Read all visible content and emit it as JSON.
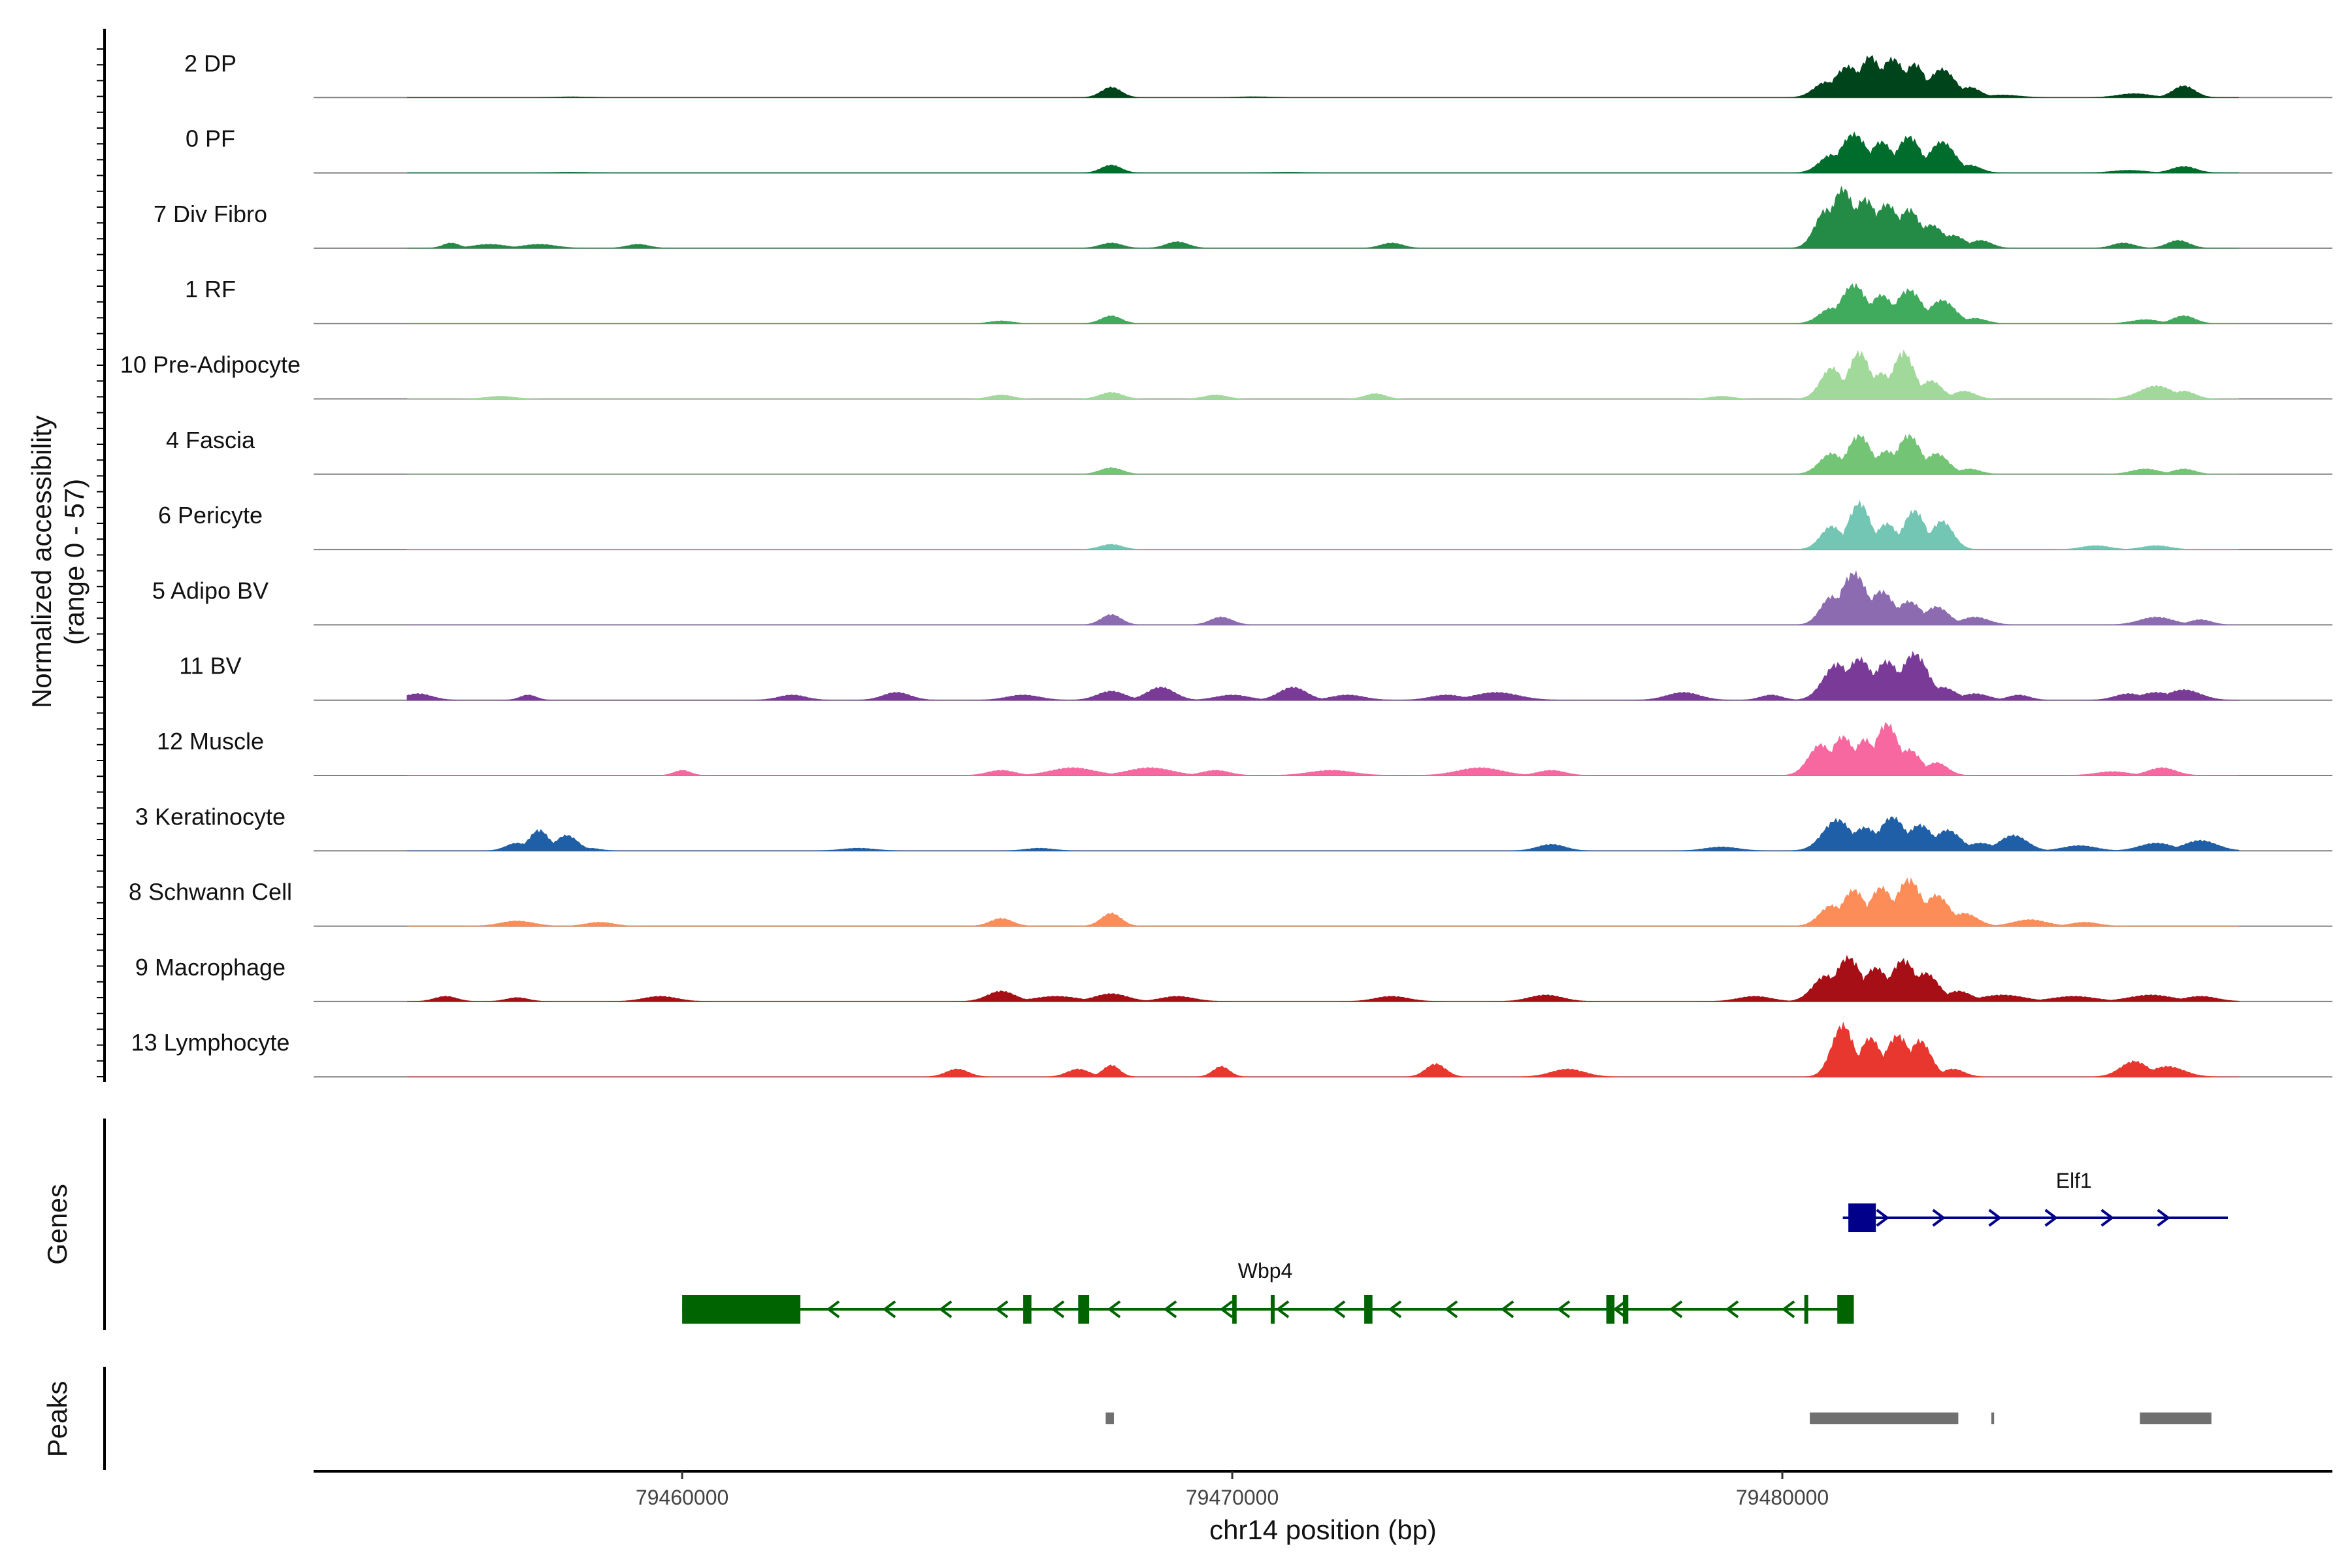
{
  "chart_data": {
    "type": "genome-track",
    "y_axis_title": [
      "Normalized accessibility",
      "(range 0 - 57)"
    ],
    "y_range": [
      0,
      57
    ],
    "x_axis_title": "chr14 position (bp)",
    "x_range": [
      79453300,
      79490000
    ],
    "x_ticks": [
      {
        "value": 79460000,
        "label": "79460000"
      },
      {
        "value": 79470000,
        "label": "79470000"
      },
      {
        "value": 79480000,
        "label": "79480000"
      }
    ],
    "tracks": [
      {
        "name": "2 DP",
        "color": "#00441b",
        "peaks": [
          [
            79458000,
            0.5,
            300
          ],
          [
            79467800,
            8,
            180
          ],
          [
            79470400,
            0.6,
            300
          ],
          [
            79480800,
            12,
            220
          ],
          [
            79481200,
            24,
            260
          ],
          [
            79481600,
            32,
            200
          ],
          [
            79482000,
            30,
            240
          ],
          [
            79482400,
            26,
            200
          ],
          [
            79482900,
            22,
            240
          ],
          [
            79483400,
            8,
            200
          ],
          [
            79484000,
            2,
            300
          ],
          [
            79486400,
            3,
            300
          ],
          [
            79487300,
            9,
            200
          ]
        ]
      },
      {
        "name": "0 PF",
        "color": "#006d2c",
        "peaks": [
          [
            79458000,
            0.5,
            300
          ],
          [
            79467800,
            6,
            180
          ],
          [
            79471000,
            0.5,
            300
          ],
          [
            79480900,
            14,
            220
          ],
          [
            79481300,
            30,
            250
          ],
          [
            79481800,
            24,
            220
          ],
          [
            79482300,
            28,
            220
          ],
          [
            79482900,
            24,
            240
          ],
          [
            79483400,
            6,
            200
          ],
          [
            79486300,
            2,
            300
          ],
          [
            79487300,
            5,
            220
          ]
        ]
      },
      {
        "name": "7 Div Fibro",
        "color": "#238b45",
        "peaks": [
          [
            79455800,
            4,
            150
          ],
          [
            79456500,
            3,
            300
          ],
          [
            79457400,
            3,
            300
          ],
          [
            79459200,
            3,
            200
          ],
          [
            79467800,
            4,
            200
          ],
          [
            79469000,
            5,
            200
          ],
          [
            79472900,
            4,
            200
          ],
          [
            79480800,
            30,
            200
          ],
          [
            79481100,
            46,
            220
          ],
          [
            79481500,
            38,
            240
          ],
          [
            79481900,
            34,
            240
          ],
          [
            79482300,
            30,
            220
          ],
          [
            79482700,
            18,
            240
          ],
          [
            79483100,
            10,
            220
          ],
          [
            79483600,
            6,
            200
          ],
          [
            79486200,
            4,
            200
          ],
          [
            79487200,
            6,
            200
          ]
        ]
      },
      {
        "name": "1 RF",
        "color": "#41ab5d",
        "peaks": [
          [
            79465800,
            2,
            200
          ],
          [
            79467800,
            6,
            180
          ],
          [
            79480900,
            12,
            220
          ],
          [
            79481300,
            30,
            240
          ],
          [
            79481800,
            22,
            220
          ],
          [
            79482300,
            26,
            240
          ],
          [
            79482900,
            18,
            240
          ],
          [
            79483500,
            4,
            200
          ],
          [
            79486600,
            3,
            250
          ],
          [
            79487300,
            6,
            200
          ]
        ]
      },
      {
        "name": "10 Pre-Adipocyte",
        "color": "#a1d99b",
        "peaks": [
          [
            79456700,
            2,
            250
          ],
          [
            79465800,
            3,
            200
          ],
          [
            79467800,
            5,
            200
          ],
          [
            79469700,
            3,
            200
          ],
          [
            79472600,
            4,
            180
          ],
          [
            79478900,
            2,
            200
          ],
          [
            79480900,
            24,
            200
          ],
          [
            79481400,
            36,
            200
          ],
          [
            79481800,
            20,
            200
          ],
          [
            79482200,
            36,
            200
          ],
          [
            79482700,
            14,
            200
          ],
          [
            79483300,
            6,
            200
          ],
          [
            79486800,
            10,
            300
          ],
          [
            79487300,
            6,
            200
          ]
        ]
      },
      {
        "name": "4 Fascia",
        "color": "#74c476",
        "peaks": [
          [
            79467800,
            5,
            200
          ],
          [
            79480900,
            16,
            220
          ],
          [
            79481400,
            30,
            220
          ],
          [
            79481900,
            18,
            220
          ],
          [
            79482300,
            30,
            220
          ],
          [
            79482800,
            16,
            220
          ],
          [
            79483400,
            4,
            200
          ],
          [
            79486600,
            4,
            250
          ],
          [
            79487300,
            4,
            200
          ]
        ]
      },
      {
        "name": "6 Pericyte",
        "color": "#74c6b4",
        "peaks": [
          [
            79467800,
            4,
            200
          ],
          [
            79480900,
            18,
            200
          ],
          [
            79481400,
            36,
            200
          ],
          [
            79481900,
            20,
            200
          ],
          [
            79482400,
            30,
            200
          ],
          [
            79482900,
            22,
            200
          ],
          [
            79485700,
            3,
            250
          ],
          [
            79486800,
            3,
            250
          ]
        ]
      },
      {
        "name": "5 Adipo BV",
        "color": "#8c6bb1",
        "peaks": [
          [
            79467800,
            8,
            180
          ],
          [
            79469800,
            6,
            200
          ],
          [
            79480900,
            22,
            200
          ],
          [
            79481300,
            40,
            250
          ],
          [
            79481800,
            26,
            240
          ],
          [
            79482300,
            18,
            240
          ],
          [
            79482800,
            14,
            220
          ],
          [
            79483500,
            6,
            250
          ],
          [
            79486800,
            6,
            300
          ],
          [
            79487600,
            4,
            200
          ]
        ]
      },
      {
        "name": "11 BV",
        "color": "#7a3a98",
        "peaks": [
          [
            79455200,
            5,
            250
          ],
          [
            79457200,
            4,
            150
          ],
          [
            79462000,
            4,
            250
          ],
          [
            79463900,
            6,
            250
          ],
          [
            79466200,
            4,
            300
          ],
          [
            79467800,
            7,
            250
          ],
          [
            79468700,
            10,
            250
          ],
          [
            79470000,
            4,
            300
          ],
          [
            79471100,
            10,
            250
          ],
          [
            79472100,
            4,
            300
          ],
          [
            79473900,
            4,
            300
          ],
          [
            79474800,
            6,
            400
          ],
          [
            79478200,
            6,
            300
          ],
          [
            79479800,
            4,
            200
          ],
          [
            79481000,
            28,
            250
          ],
          [
            79481400,
            32,
            250
          ],
          [
            79481900,
            30,
            250
          ],
          [
            79482400,
            36,
            250
          ],
          [
            79482900,
            10,
            250
          ],
          [
            79483500,
            5,
            250
          ],
          [
            79484300,
            4,
            200
          ],
          [
            79486300,
            5,
            250
          ],
          [
            79486800,
            6,
            300
          ],
          [
            79487300,
            8,
            300
          ]
        ]
      },
      {
        "name": "12 Muscle",
        "color": "#f768a1",
        "peaks": [
          [
            79460000,
            4,
            150
          ],
          [
            79465800,
            4,
            250
          ],
          [
            79467100,
            6,
            400
          ],
          [
            79468500,
            6,
            400
          ],
          [
            79469700,
            4,
            250
          ],
          [
            79471800,
            4,
            400
          ],
          [
            79474500,
            6,
            400
          ],
          [
            79475800,
            4,
            250
          ],
          [
            79480700,
            24,
            220
          ],
          [
            79481100,
            30,
            220
          ],
          [
            79481500,
            28,
            200
          ],
          [
            79481900,
            40,
            220
          ],
          [
            79482300,
            20,
            220
          ],
          [
            79482800,
            10,
            200
          ],
          [
            79486000,
            3,
            300
          ],
          [
            79486900,
            6,
            250
          ]
        ]
      },
      {
        "name": "3 Keratinocyte",
        "color": "#1f5fa8",
        "peaks": [
          [
            79457000,
            6,
            200
          ],
          [
            79457400,
            16,
            180
          ],
          [
            79457900,
            12,
            200
          ],
          [
            79458300,
            2,
            200
          ],
          [
            79463200,
            2,
            300
          ],
          [
            79466500,
            2,
            250
          ],
          [
            79475800,
            5,
            250
          ],
          [
            79478900,
            3,
            300
          ],
          [
            79481000,
            24,
            260
          ],
          [
            79481500,
            18,
            260
          ],
          [
            79482000,
            26,
            240
          ],
          [
            79482500,
            20,
            240
          ],
          [
            79483000,
            16,
            240
          ],
          [
            79483600,
            6,
            250
          ],
          [
            79484200,
            12,
            250
          ],
          [
            79485400,
            4,
            300
          ],
          [
            79486800,
            6,
            300
          ],
          [
            79487600,
            8,
            300
          ]
        ]
      },
      {
        "name": "8 Schwann Cell",
        "color": "#fc8d59",
        "peaks": [
          [
            79457000,
            4,
            300
          ],
          [
            79458500,
            3,
            250
          ],
          [
            79465800,
            6,
            200
          ],
          [
            79467800,
            10,
            180
          ],
          [
            79480900,
            16,
            220
          ],
          [
            79481300,
            28,
            220
          ],
          [
            79481800,
            30,
            220
          ],
          [
            79482300,
            36,
            240
          ],
          [
            79482800,
            24,
            240
          ],
          [
            79483300,
            10,
            240
          ],
          [
            79484500,
            5,
            300
          ],
          [
            79485500,
            3,
            250
          ]
        ]
      },
      {
        "name": "9 Macrophage",
        "color": "#a50f15",
        "peaks": [
          [
            79455700,
            4,
            200
          ],
          [
            79457000,
            3,
            200
          ],
          [
            79459600,
            4,
            300
          ],
          [
            79465800,
            8,
            250
          ],
          [
            79466800,
            4,
            400
          ],
          [
            79467800,
            6,
            300
          ],
          [
            79469000,
            4,
            300
          ],
          [
            79472900,
            4,
            300
          ],
          [
            79475700,
            5,
            300
          ],
          [
            79479500,
            4,
            300
          ],
          [
            79480800,
            20,
            240
          ],
          [
            79481200,
            34,
            240
          ],
          [
            79481700,
            26,
            240
          ],
          [
            79482200,
            32,
            240
          ],
          [
            79482600,
            22,
            240
          ],
          [
            79483200,
            8,
            240
          ],
          [
            79484000,
            5,
            400
          ],
          [
            79485300,
            4,
            400
          ],
          [
            79486700,
            5,
            400
          ],
          [
            79487600,
            4,
            300
          ]
        ]
      },
      {
        "name": "13 Lymphocyte",
        "color": "#e8372e",
        "peaks": [
          [
            79465000,
            6,
            200
          ],
          [
            79467200,
            6,
            200
          ],
          [
            79467800,
            9,
            150
          ],
          [
            79469800,
            8,
            150
          ],
          [
            79473700,
            10,
            180
          ],
          [
            79476100,
            6,
            300
          ],
          [
            79481100,
            40,
            200
          ],
          [
            79481600,
            30,
            200
          ],
          [
            79482100,
            32,
            220
          ],
          [
            79482500,
            28,
            200
          ],
          [
            79483100,
            6,
            200
          ],
          [
            79486400,
            12,
            250
          ],
          [
            79487000,
            8,
            300
          ]
        ]
      }
    ],
    "genes_title": "Genes",
    "genes": [
      {
        "name": "Elf1",
        "color": "#00008b",
        "strand": "+",
        "start": 79481100,
        "end": 79488100,
        "exons": [
          [
            79481200,
            79481700
          ]
        ]
      },
      {
        "name": "Wbp4",
        "color": "#006400",
        "strand": "-",
        "start": 79460000,
        "end": 79481300,
        "exons": [
          [
            79460000,
            79462150
          ],
          [
            79466200,
            79466350
          ],
          [
            79467200,
            79467400
          ],
          [
            79470000,
            79470080
          ],
          [
            79470700,
            79470750
          ],
          [
            79472400,
            79472550
          ],
          [
            79476800,
            79476950
          ],
          [
            79477100,
            79477200
          ],
          [
            79480400,
            79480450
          ],
          [
            79481000,
            79481300
          ]
        ]
      }
    ],
    "peaks_title": "Peaks",
    "peak_regions": [
      [
        79467700,
        79467850
      ],
      [
        79480500,
        79483200
      ],
      [
        79483800,
        79483850
      ],
      [
        79486500,
        79487800
      ]
    ],
    "peak_color": "#707070"
  }
}
